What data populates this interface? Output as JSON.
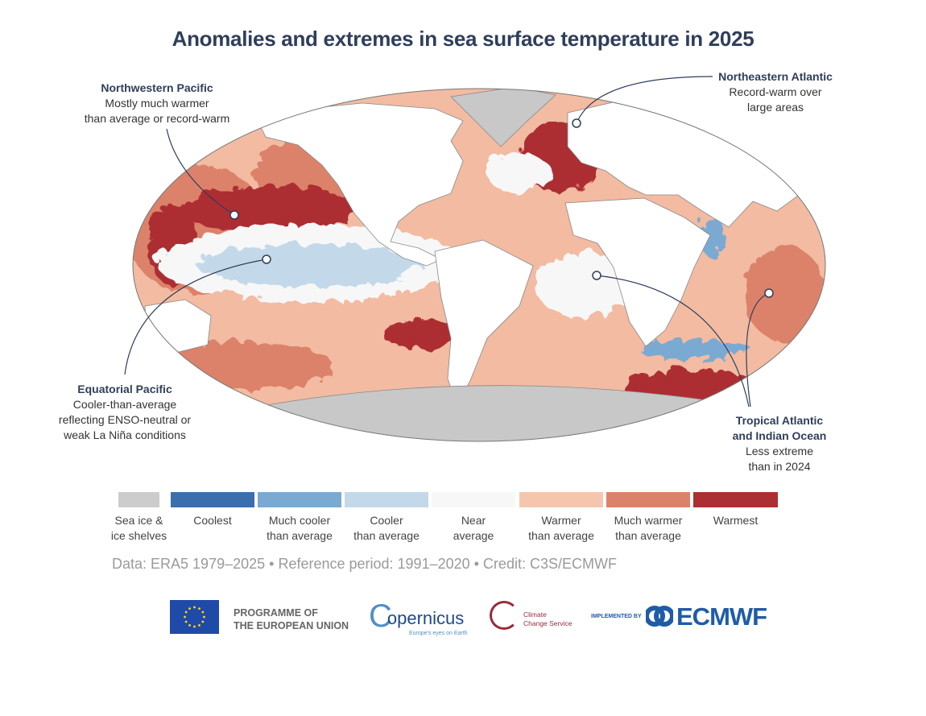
{
  "title": "Anomalies and extremes in sea surface temperature in 2025",
  "annotations": [
    {
      "id": "nw-pacific",
      "heading": "Northwestern Pacific",
      "lines": [
        "Mostly much warmer",
        "than average or record-warm"
      ]
    },
    {
      "id": "ne-atlantic",
      "heading": "Northeastern Atlantic",
      "lines": [
        "Record-warm over",
        "large areas"
      ]
    },
    {
      "id": "eq-pacific",
      "heading": "Equatorial Pacific",
      "lines": [
        "Cooler-than-average",
        "reflecting ENSO-neutral or",
        "weak La Niña conditions"
      ]
    },
    {
      "id": "trop-atl-ind",
      "heading": "Tropical Atlantic",
      "heading2": "and Indian Ocean",
      "lines": [
        "Less extreme",
        "than in 2024"
      ]
    }
  ],
  "legend": [
    {
      "l1": "Sea ice &",
      "l2": "ice shelves",
      "color": "#cccccc"
    },
    {
      "l1": "Coolest",
      "l2": "",
      "color": "#3b6ead"
    },
    {
      "l1": "Much cooler",
      "l2": "than average",
      "color": "#7aaad2"
    },
    {
      "l1": "Cooler",
      "l2": "than average",
      "color": "#c3d9ea"
    },
    {
      "l1": "Near",
      "l2": "average",
      "color": "#f7f7f7"
    },
    {
      "l1": "Warmer",
      "l2": "than average",
      "color": "#f5c6ad"
    },
    {
      "l1": "Much warmer",
      "l2": "than average",
      "color": "#dc826a"
    },
    {
      "l1": "Warmest",
      "l2": "",
      "color": "#ac2f33"
    }
  ],
  "credit": "Data: ERA5 1979–2025 • Reference period: 1991–2020 • Credit: C3S/ECMWF",
  "logos": {
    "eu": "PROGRAMME OF",
    "eu2": "THE EUROPEAN UNION",
    "copernicus": "opernicus",
    "copernicus_c": "C",
    "copernicus_tag": "Europe's eyes on Earth",
    "c3s1": "Climate",
    "c3s2": "Change Service",
    "implemented": "IMPLEMENTED BY",
    "ecmwf": "ECMWF"
  }
}
